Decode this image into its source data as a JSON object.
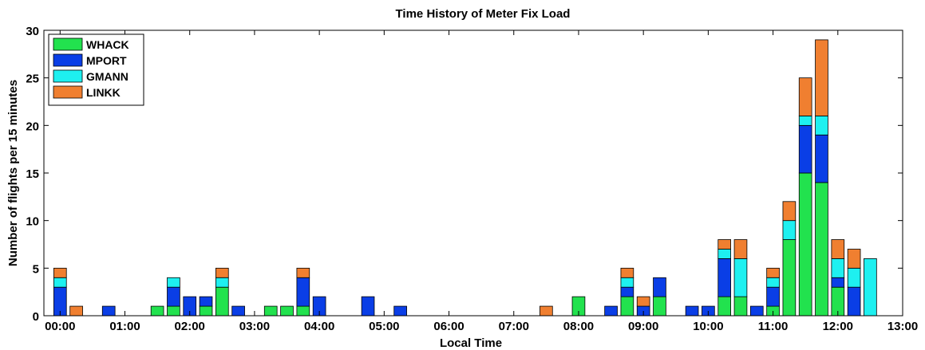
{
  "chart_data": {
    "type": "bar",
    "stacked": true,
    "title": "Time History of Meter Fix Load",
    "xlabel": "Local Time",
    "ylabel": "Number of flights per 15 minutes",
    "ylim": [
      0,
      30
    ],
    "xlim_hours": [
      -0.25,
      13
    ],
    "yticks": [
      "0",
      "5",
      "10",
      "15",
      "20",
      "25",
      "30"
    ],
    "xticks": [
      "00:00",
      "01:00",
      "02:00",
      "03:00",
      "04:00",
      "05:00",
      "06:00",
      "07:00",
      "08:00",
      "09:00",
      "10:00",
      "11:00",
      "12:00",
      "13:00"
    ],
    "legend_position": "top-left",
    "grid": false,
    "x_unit": "hours",
    "series": [
      {
        "name": "WHACK",
        "color": "#22e24e",
        "values": [
          0,
          0,
          0,
          0,
          0,
          0,
          1,
          1,
          0,
          1,
          3,
          0,
          0,
          1,
          1,
          1,
          0,
          0,
          0,
          0,
          0,
          0,
          0,
          0,
          0,
          0,
          0,
          0,
          0,
          0,
          0,
          0,
          2,
          0,
          0,
          2,
          0,
          2,
          0,
          0,
          0,
          2,
          2,
          0,
          1,
          8,
          15,
          14,
          3,
          0,
          0
        ]
      },
      {
        "name": "MPORT",
        "color": "#0a3ee6",
        "values": [
          3,
          0,
          0,
          1,
          0,
          0,
          0,
          2,
          2,
          1,
          0,
          1,
          0,
          0,
          0,
          3,
          2,
          0,
          0,
          2,
          0,
          1,
          0,
          0,
          0,
          0,
          0,
          0,
          0,
          0,
          0,
          0,
          0,
          0,
          1,
          1,
          1,
          2,
          0,
          1,
          1,
          4,
          0,
          1,
          2,
          0,
          5,
          5,
          1,
          3,
          0
        ]
      },
      {
        "name": "GMANN",
        "color": "#1ef0f0",
        "values": [
          1,
          0,
          0,
          0,
          0,
          0,
          0,
          1,
          0,
          0,
          1,
          0,
          0,
          0,
          0,
          0,
          0,
          0,
          0,
          0,
          0,
          0,
          0,
          0,
          0,
          0,
          0,
          0,
          0,
          0,
          0,
          0,
          0,
          0,
          0,
          1,
          0,
          0,
          0,
          0,
          0,
          1,
          4,
          0,
          1,
          2,
          1,
          2,
          2,
          2,
          6
        ]
      },
      {
        "name": "LINKK",
        "color": "#f07f30",
        "values": [
          1,
          1,
          0,
          0,
          0,
          0,
          0,
          0,
          0,
          0,
          1,
          0,
          0,
          0,
          0,
          1,
          0,
          0,
          0,
          0,
          0,
          0,
          0,
          0,
          0,
          0,
          0,
          0,
          0,
          0,
          1,
          0,
          0,
          0,
          0,
          1,
          1,
          0,
          0,
          0,
          0,
          1,
          2,
          0,
          1,
          2,
          4,
          8,
          2,
          2,
          0
        ]
      }
    ]
  }
}
